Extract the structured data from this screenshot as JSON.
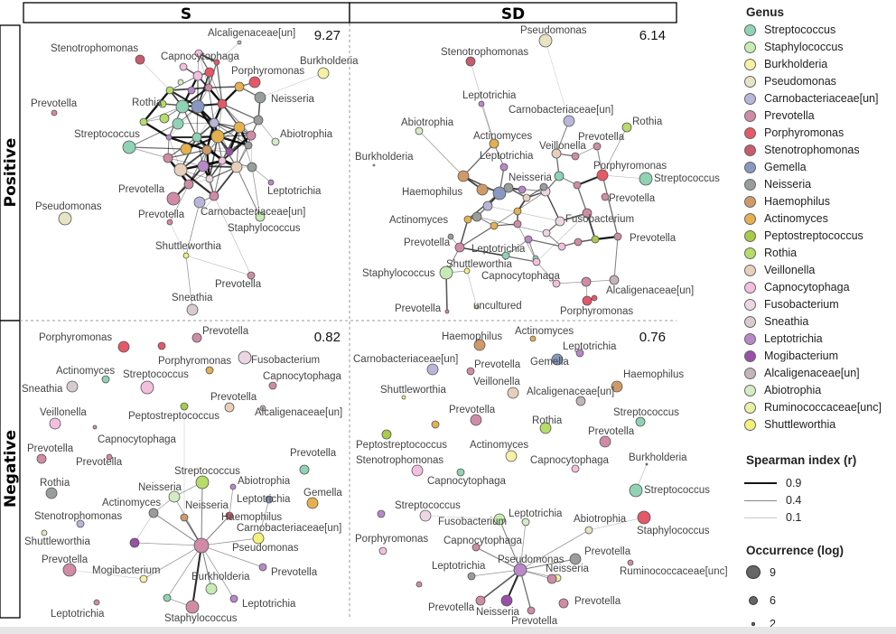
{
  "columns": [
    "S",
    "SD"
  ],
  "rows": [
    "Positive",
    "Negative"
  ],
  "panels": [
    {
      "id": "pos-s",
      "value": "9.27",
      "col": 0,
      "row": 0
    },
    {
      "id": "pos-sd",
      "value": "6.14",
      "col": 1,
      "row": 0
    },
    {
      "id": "neg-s",
      "value": "0.82",
      "col": 0,
      "row": 1
    },
    {
      "id": "neg-sd",
      "value": "0.76",
      "col": 1,
      "row": 1
    }
  ],
  "legend": {
    "genus_title": "Genus",
    "genera": [
      {
        "name": "Streptococcus",
        "color": "#8fd3b4"
      },
      {
        "name": "Staphylococcus",
        "color": "#c6ecb4"
      },
      {
        "name": "Burkholderia",
        "color": "#f5f0a4"
      },
      {
        "name": "Pseudomonas",
        "color": "#e6e4c4"
      },
      {
        "name": "Carnobacteriaceae[un]",
        "color": "#b8b6da"
      },
      {
        "name": "Prevotella",
        "color": "#d08ca6"
      },
      {
        "name": "Porphyromonas",
        "color": "#e45868"
      },
      {
        "name": "Stenotrophomonas",
        "color": "#c85c6c"
      },
      {
        "name": "Gemella",
        "color": "#8898c0"
      },
      {
        "name": "Neisseria",
        "color": "#9a9e9a"
      },
      {
        "name": "Haemophilus",
        "color": "#d09a68"
      },
      {
        "name": "Actinomyces",
        "color": "#e4b050"
      },
      {
        "name": "Peptostreptococcus",
        "color": "#a8cc48"
      },
      {
        "name": "Rothia",
        "color": "#b8dc68"
      },
      {
        "name": "Veillonella",
        "color": "#e6d0bc"
      },
      {
        "name": "Capnocytophaga",
        "color": "#f2c0de"
      },
      {
        "name": "Fusobacterium",
        "color": "#ecd6e4"
      },
      {
        "name": "Sneathia",
        "color": "#d6ccd0"
      },
      {
        "name": "Leptotrichia",
        "color": "#b888c8"
      },
      {
        "name": "Mogibacterium",
        "color": "#9850a8"
      },
      {
        "name": "Alcaligenaceae[un]",
        "color": "#c4b4bc"
      },
      {
        "name": "Abiotrophia",
        "color": "#d4ecc4"
      },
      {
        "name": "Ruminococcaceae[unc]",
        "color": "#e8f0a4"
      },
      {
        "name": "Shuttleworthia",
        "color": "#f4f07c"
      }
    ],
    "spearman_title": "Spearman index (r)",
    "spearman": [
      {
        "label": "0.9",
        "r": 0.9
      },
      {
        "label": "0.4",
        "r": 0.4
      },
      {
        "label": "0.1",
        "r": 0.1
      }
    ],
    "occurrence_title": "Occurrence (log)",
    "occurrence": [
      {
        "label": "9",
        "log": 9
      },
      {
        "label": "6",
        "log": 6
      },
      {
        "label": "2",
        "log": 2
      }
    ]
  },
  "networks": {
    "pos-s": {
      "labels": [
        {
          "text": "Alcaligenaceae[un]",
          "genus": "Alcaligenaceae[un]"
        },
        {
          "text": "Stenotrophomonas",
          "genus": "Stenotrophomonas"
        },
        {
          "text": "Capnocytophaga",
          "genus": "Capnocytophaga"
        },
        {
          "text": "Burkholderia",
          "genus": "Burkholderia"
        },
        {
          "text": "Porphyromonas",
          "genus": "Porphyromonas"
        },
        {
          "text": "Neisseria",
          "genus": "Neisseria"
        },
        {
          "text": "Prevotella",
          "genus": "Prevotella"
        },
        {
          "text": "Rothia",
          "genus": "Rothia"
        },
        {
          "text": "Abiotrophia",
          "genus": "Abiotrophia"
        },
        {
          "text": "Streptococcus",
          "genus": "Streptococcus"
        },
        {
          "text": "Leptotrichia",
          "genus": "Leptotrichia"
        },
        {
          "text": "Prevotella",
          "genus": "Prevotella"
        },
        {
          "text": "Carnobacteriaceae[un]",
          "genus": "Carnobacteriaceae[un]"
        },
        {
          "text": "Pseudomonas",
          "genus": "Pseudomonas"
        },
        {
          "text": "Prevotella",
          "genus": "Prevotella"
        },
        {
          "text": "Staphylococcus",
          "genus": "Staphylococcus"
        },
        {
          "text": "Shuttleworthia",
          "genus": "Shuttleworthia"
        },
        {
          "text": "Prevotella",
          "genus": "Prevotella"
        },
        {
          "text": "Sneathia",
          "genus": "Sneathia"
        }
      ]
    },
    "pos-sd": {
      "labels": [
        {
          "text": "Pseudomonas",
          "genus": "Pseudomonas"
        },
        {
          "text": "Stenotrophomonas",
          "genus": "Stenotrophomonas"
        },
        {
          "text": "Leptotrichia",
          "genus": "Leptotrichia"
        },
        {
          "text": "Carnobacteriaceae[un]",
          "genus": "Carnobacteriaceae[un]"
        },
        {
          "text": "Rothia",
          "genus": "Rothia"
        },
        {
          "text": "Abiotrophia",
          "genus": "Abiotrophia"
        },
        {
          "text": "Actinomyces",
          "genus": "Actinomyces"
        },
        {
          "text": "Veillonella",
          "genus": "Veillonella"
        },
        {
          "text": "Prevotella",
          "genus": "Prevotella"
        },
        {
          "text": "Burkholderia",
          "genus": "Burkholderia"
        },
        {
          "text": "Leptotrichia",
          "genus": "Leptotrichia"
        },
        {
          "text": "Porphyromonas",
          "genus": "Porphyromonas"
        },
        {
          "text": "Neisseria",
          "genus": "Neisseria"
        },
        {
          "text": "Streptococcus",
          "genus": "Streptococcus"
        },
        {
          "text": "Haemophilus",
          "genus": "Haemophilus"
        },
        {
          "text": "Prevotella",
          "genus": "Prevotella"
        },
        {
          "text": "Actinomyces",
          "genus": "Actinomyces"
        },
        {
          "text": "Fusobacterium",
          "genus": "Fusobacterium"
        },
        {
          "text": "Prevotella",
          "genus": "Prevotella"
        },
        {
          "text": "Prevotella",
          "genus": "Prevotella"
        },
        {
          "text": "Leptotrichia",
          "genus": "Leptotrichia"
        },
        {
          "text": "Shuttleworthia",
          "genus": "Shuttleworthia"
        },
        {
          "text": "Staphylococcus",
          "genus": "Staphylococcus"
        },
        {
          "text": "Capnocytophaga",
          "genus": "Capnocytophaga"
        },
        {
          "text": "Alcaligenaceae[un]",
          "genus": "Alcaligenaceae[un]"
        },
        {
          "text": "uncultured",
          "genus": "Ruminococcaceae[unc]"
        },
        {
          "text": "Prevotella",
          "genus": "Prevotella"
        },
        {
          "text": "Porphyromonas",
          "genus": "Porphyromonas"
        }
      ]
    },
    "neg-s": {
      "labels": [
        {
          "text": "Porphyromonas",
          "genus": "Porphyromonas"
        },
        {
          "text": "Prevotella",
          "genus": "Prevotella"
        },
        {
          "text": "Fusobacterium",
          "genus": "Fusobacterium"
        },
        {
          "text": "Porphyromonas",
          "genus": "Porphyromonas"
        },
        {
          "text": "Actinomyces",
          "genus": "Actinomyces"
        },
        {
          "text": "Streptococcus",
          "genus": "Streptococcus"
        },
        {
          "text": "Capnocytophaga",
          "genus": "Capnocytophaga"
        },
        {
          "text": "Sneathia",
          "genus": "Sneathia"
        },
        {
          "text": "Prevotella",
          "genus": "Prevotella"
        },
        {
          "text": "Veillonella",
          "genus": "Veillonella"
        },
        {
          "text": "Peptostreptococcus",
          "genus": "Peptostreptococcus"
        },
        {
          "text": "Alcaligenaceae[un]",
          "genus": "Alcaligenaceae[un]"
        },
        {
          "text": "Capnocytophaga",
          "genus": "Capnocytophaga"
        },
        {
          "text": "Prevotella",
          "genus": "Prevotella"
        },
        {
          "text": "Prevotella",
          "genus": "Prevotella"
        },
        {
          "text": "Prevotella",
          "genus": "Prevotella"
        },
        {
          "text": "Streptococcus",
          "genus": "Streptococcus"
        },
        {
          "text": "Rothia",
          "genus": "Rothia"
        },
        {
          "text": "Neisseria",
          "genus": "Neisseria"
        },
        {
          "text": "Abiotrophia",
          "genus": "Abiotrophia"
        },
        {
          "text": "Leptotrichia",
          "genus": "Leptotrichia"
        },
        {
          "text": "Gemella",
          "genus": "Gemella"
        },
        {
          "text": "Actinomyces",
          "genus": "Actinomyces"
        },
        {
          "text": "Neisseria",
          "genus": "Neisseria"
        },
        {
          "text": "Haemophilus",
          "genus": "Haemophilus"
        },
        {
          "text": "Stenotrophomonas",
          "genus": "Stenotrophomonas"
        },
        {
          "text": "Carnobacteriaceae[un]",
          "genus": "Carnobacteriaceae[un]"
        },
        {
          "text": "Shuttleworthia",
          "genus": "Shuttleworthia"
        },
        {
          "text": "Pseudomonas",
          "genus": "Pseudomonas"
        },
        {
          "text": "Prevotella",
          "genus": "Prevotella"
        },
        {
          "text": "Mogibacterium",
          "genus": "Mogibacterium"
        },
        {
          "text": "Prevotella",
          "genus": "Prevotella"
        },
        {
          "text": "Burkholderia",
          "genus": "Burkholderia"
        },
        {
          "text": "Leptotrichia",
          "genus": "Leptotrichia"
        },
        {
          "text": "Staphylococcus",
          "genus": "Staphylococcus"
        },
        {
          "text": "Leptotrichia",
          "genus": "Leptotrichia"
        }
      ]
    },
    "neg-sd": {
      "labels": [
        {
          "text": "Actinomyces",
          "genus": "Actinomyces"
        },
        {
          "text": "Haemophilus",
          "genus": "Haemophilus"
        },
        {
          "text": "Leptotrichia",
          "genus": "Leptotrichia"
        },
        {
          "text": "Carnobacteriaceae[un]",
          "genus": "Carnobacteriaceae[un]"
        },
        {
          "text": "Prevotella",
          "genus": "Prevotella"
        },
        {
          "text": "Gemella",
          "genus": "Gemella"
        },
        {
          "text": "Haemophilus",
          "genus": "Haemophilus"
        },
        {
          "text": "Veillonella",
          "genus": "Veillonella"
        },
        {
          "text": "Shuttleworthia",
          "genus": "Shuttleworthia"
        },
        {
          "text": "Alcaligenaceae[un]",
          "genus": "Alcaligenaceae[un]"
        },
        {
          "text": "Prevotella",
          "genus": "Prevotella"
        },
        {
          "text": "Streptococcus",
          "genus": "Streptococcus"
        },
        {
          "text": "Rothia",
          "genus": "Rothia"
        },
        {
          "text": "Prevotella",
          "genus": "Prevotella"
        },
        {
          "text": "Peptostreptococcus",
          "genus": "Peptostreptococcus"
        },
        {
          "text": "Actinomyces",
          "genus": "Actinomyces"
        },
        {
          "text": "Burkholderia",
          "genus": "Burkholderia"
        },
        {
          "text": "Stenotrophomonas",
          "genus": "Stenotrophomonas"
        },
        {
          "text": "Capnocytophaga",
          "genus": "Capnocytophaga"
        },
        {
          "text": "Capnocytophaga",
          "genus": "Capnocytophaga"
        },
        {
          "text": "Streptococcus",
          "genus": "Streptococcus"
        },
        {
          "text": "Streptococcus",
          "genus": "Streptococcus"
        },
        {
          "text": "Leptotrichia",
          "genus": "Leptotrichia"
        },
        {
          "text": "Fusobacterium",
          "genus": "Fusobacterium"
        },
        {
          "text": "Abiotrophia",
          "genus": "Abiotrophia"
        },
        {
          "text": "Staphylococcus",
          "genus": "Staphylococcus"
        },
        {
          "text": "Porphyromonas",
          "genus": "Porphyromonas"
        },
        {
          "text": "Capnocytophaga",
          "genus": "Capnocytophaga"
        },
        {
          "text": "Prevotella",
          "genus": "Prevotella"
        },
        {
          "text": "Pseudomonas",
          "genus": "Pseudomonas"
        },
        {
          "text": "Leptotrichia",
          "genus": "Leptotrichia"
        },
        {
          "text": "Ruminococcaceae[unc]",
          "genus": "Ruminococcaceae[unc]"
        },
        {
          "text": "Neisseria",
          "genus": "Neisseria"
        },
        {
          "text": "Prevotella",
          "genus": "Prevotella"
        },
        {
          "text": "Prevotella",
          "genus": "Prevotella"
        },
        {
          "text": "Neisseria",
          "genus": "Neisseria"
        },
        {
          "text": "Prevotella",
          "genus": "Prevotella"
        },
        {
          "text": "Mogibacterium",
          "genus": "Mogibacterium"
        }
      ]
    }
  }
}
